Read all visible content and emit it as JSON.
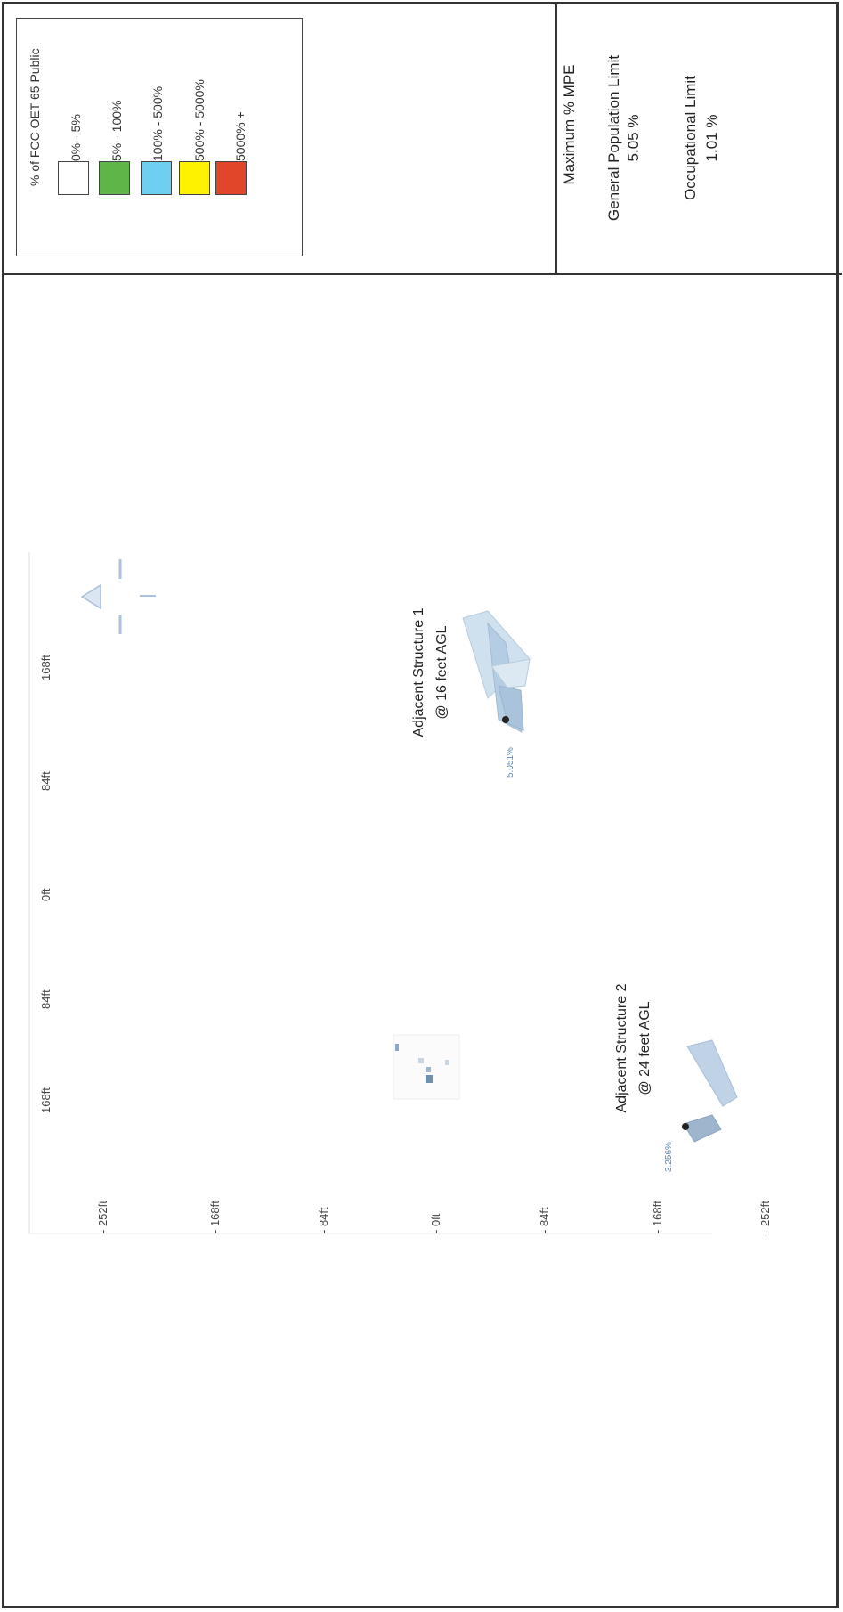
{
  "legend": {
    "title": "% of FCC OET 65 Public",
    "items": [
      {
        "label": "0% - 5%",
        "color": "#ffffff"
      },
      {
        "label": "5% - 100%",
        "color": "#5fb547"
      },
      {
        "label": "100% - 500%",
        "color": "#6ecff0"
      },
      {
        "label": "500% - 5000%",
        "color": "#fff200"
      },
      {
        "label": "5000% +",
        "color": "#e2462a"
      }
    ]
  },
  "mpe": {
    "heading": "Maximum % MPE",
    "general_label": "General Population Limit",
    "general_value": "5.05 %",
    "occupational_label": "Occupational Limit",
    "occupational_value": "1.01 %"
  },
  "plot": {
    "horizontal_ticks": [
      "168ft",
      "84ft",
      "0ft",
      "84ft",
      "168ft"
    ],
    "vertical_ticks": [
      "- 252ft",
      "- 168ft",
      "- 84ft",
      "- 0ft",
      "- 84ft",
      "- 168ft",
      "- 252ft"
    ],
    "structure1": {
      "name": "Adjacent Structure 1",
      "height": "@ 16 feet AGL",
      "percent": "5.051%"
    },
    "structure2": {
      "name": "Adjacent Structure 2",
      "height": "@ 24 feet AGL",
      "percent": "3.256%"
    },
    "north_symbol": "N"
  }
}
